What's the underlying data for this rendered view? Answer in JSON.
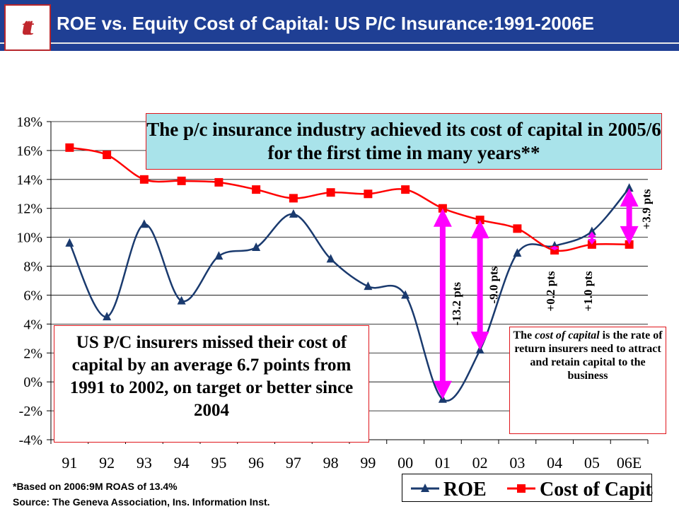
{
  "header": {
    "logo_text": "ttt",
    "title": "ROE vs. Equity Cost of Capital: US P/C Insurance:1991-2006E"
  },
  "chart_data": {
    "type": "line",
    "categories": [
      "91",
      "92",
      "93",
      "94",
      "95",
      "96",
      "97",
      "98",
      "99",
      "00",
      "01",
      "02",
      "03",
      "04",
      "05",
      "06E"
    ],
    "ylim": [
      -4,
      18
    ],
    "yticks": [
      -4,
      -2,
      0,
      2,
      4,
      6,
      8,
      10,
      12,
      14,
      16,
      18
    ],
    "ytick_labels": [
      "-4%",
      "-2%",
      "0%",
      "2%",
      "4%",
      "6%",
      "8%",
      "10%",
      "12%",
      "14%",
      "16%",
      "18%"
    ],
    "grid": true,
    "series": [
      {
        "name": "ROE",
        "color": "#1a3a6e",
        "marker": "triangle",
        "values": [
          9.6,
          4.5,
          10.9,
          5.6,
          8.7,
          9.3,
          11.6,
          8.5,
          6.6,
          6.0,
          -1.2,
          2.2,
          8.9,
          9.4,
          10.4,
          13.4
        ]
      },
      {
        "name": "Cost of Capital",
        "color": "#ff0000",
        "marker": "square",
        "values": [
          16.2,
          15.7,
          14.0,
          13.9,
          13.8,
          13.3,
          12.7,
          13.1,
          13.0,
          13.3,
          12.0,
          11.2,
          10.6,
          9.1,
          9.5,
          9.5
        ]
      }
    ],
    "gap_annotations": [
      {
        "label": "-13.2 pts",
        "category_index": 10
      },
      {
        "label": "-9.0 pts",
        "category_index": 11
      },
      {
        "label": "+0.2 pts",
        "category_index": 13
      },
      {
        "label": "+1.0 pts",
        "category_index": 14
      },
      {
        "label": "+3.9 pts",
        "category_index": 15
      }
    ]
  },
  "callouts": {
    "top": "The p/c insurance industry achieved its cost of capital in 2005/6 for the first time in many years**",
    "left": "US P/C insurers missed their cost of capital by an average 6.7 points from 1991 to 2002, on target or better since 2004",
    "right_pre": "The ",
    "right_em": "cost of capital",
    "right_post": " is the rate of return insurers need to attract and retain capital to the business"
  },
  "footer": {
    "note": "*Based on 2006:9M ROAS of 13.4%",
    "source": "Source:  The Geneva Association, Ins. Information Inst."
  },
  "legend": {
    "roe": "ROE",
    "coc": "Cost of Capital"
  },
  "colors": {
    "header": "#1f3f94",
    "roe": "#1a3a6e",
    "coc": "#ff0000",
    "arrow": "#ff00ff",
    "callout_fill": "#a9e3ea"
  }
}
